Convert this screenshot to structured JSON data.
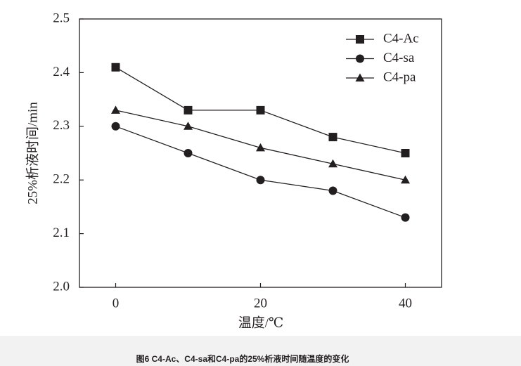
{
  "chart_data": {
    "type": "line",
    "caption": "图6   C4-Ac、C4-sa和C4-pa的25%析液时间随温度的变化",
    "xlabel": "温度/℃",
    "ylabel": "25%析液时间/min",
    "x": [
      0,
      10,
      20,
      30,
      40
    ],
    "series": [
      {
        "name": "C4-Ac",
        "color": "#231f20",
        "marker": "square",
        "values": [
          2.41,
          2.33,
          2.33,
          2.28,
          2.25
        ]
      },
      {
        "name": "C4-sa",
        "color": "#231f20",
        "marker": "circle",
        "values": [
          2.3,
          2.25,
          2.2,
          2.18,
          2.13
        ]
      },
      {
        "name": "C4-pa",
        "color": "#231f20",
        "marker": "triangle",
        "values": [
          2.33,
          2.3,
          2.26,
          2.23,
          2.2
        ]
      }
    ],
    "xlim": [
      -5,
      45
    ],
    "xticks": [
      0,
      20,
      40
    ],
    "ylim": [
      2.0,
      2.5
    ],
    "yticks": [
      {
        "value": 2.0,
        "label": "2.0"
      },
      2.1,
      2.2,
      2.3,
      2.4,
      2.5
    ],
    "legend": "upper right"
  }
}
